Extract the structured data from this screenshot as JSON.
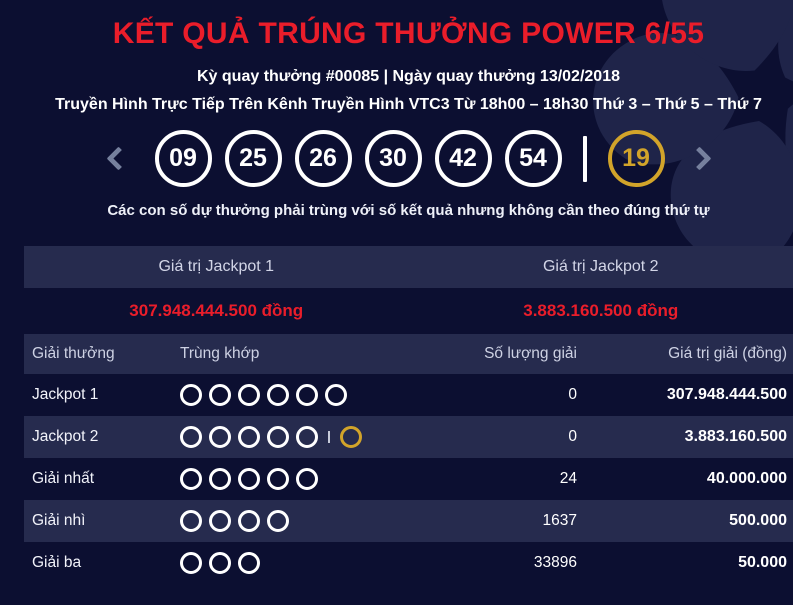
{
  "colors": {
    "background": "#0c0f31",
    "band": "#262b4e",
    "accent_red": "#ea1d2a",
    "gold": "#d2a42a",
    "white": "#ffffff"
  },
  "header": {
    "title": "KẾT QUẢ TRÚNG THƯỞNG POWER 6/55",
    "draw_info": "Kỳ quay thưởng #00085 | Ngày quay thưởng 13/02/2018",
    "broadcast_info": "Truyền Hình Trực Tiếp Trên Kênh Truyền Hình VTC3 Từ 18h00 – 18h30 Thứ 3 – Thứ 5 – Thứ 7"
  },
  "draw": {
    "numbers": [
      "09",
      "25",
      "26",
      "30",
      "42",
      "54"
    ],
    "special_number": "19",
    "note": "Các con số dự thưởng phải trùng với số kết quả nhưng không cần theo đúng thứ tự"
  },
  "icons": {
    "prev": "chevron-left",
    "next": "chevron-right"
  },
  "jackpots": {
    "jackpot1_label": "Giá trị Jackpot 1",
    "jackpot2_label": "Giá trị Jackpot 2",
    "jackpot1_value": "307.948.444.500 đồng",
    "jackpot2_value": "3.883.160.500 đồng"
  },
  "table": {
    "headers": {
      "prize": "Giải thưởng",
      "match": "Trùng khớp",
      "count": "Số lượng giải",
      "value": "Giá trị giải (đồng)"
    },
    "rows": [
      {
        "prize": "Jackpot 1",
        "match": {
          "white": 6,
          "gold": 0
        },
        "count": "0",
        "value": "307.948.444.500"
      },
      {
        "prize": "Jackpot 2",
        "match": {
          "white": 5,
          "gold": 1
        },
        "count": "0",
        "value": "3.883.160.500"
      },
      {
        "prize": "Giải nhất",
        "match": {
          "white": 5,
          "gold": 0
        },
        "count": "24",
        "value": "40.000.000"
      },
      {
        "prize": "Giải nhì",
        "match": {
          "white": 4,
          "gold": 0
        },
        "count": "1637",
        "value": "500.000"
      },
      {
        "prize": "Giải ba",
        "match": {
          "white": 3,
          "gold": 0
        },
        "count": "33896",
        "value": "50.000"
      }
    ]
  }
}
